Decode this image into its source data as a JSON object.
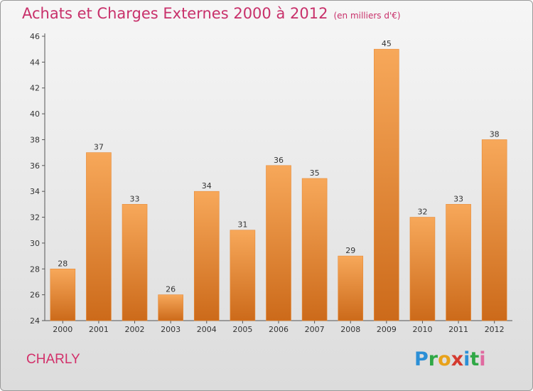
{
  "header": {
    "title": "Achats et Charges Externes 2000 à 2012",
    "unit": "(en milliers d'€)"
  },
  "footer": {
    "commune": "CHARLY",
    "logo_letters": [
      "P",
      "r",
      "o",
      "x",
      "i",
      "t",
      "i"
    ]
  },
  "colors": {
    "bar_top": "#f7a85a",
    "bar_bottom": "#cc6a1a",
    "title": "#c8306a"
  },
  "chart_data": {
    "type": "bar",
    "title": "Achats et Charges Externes 2000 à 2012",
    "subtitle": "(en milliers d'€)",
    "categories": [
      "2000",
      "2001",
      "2002",
      "2003",
      "2004",
      "2005",
      "2006",
      "2007",
      "2008",
      "2009",
      "2010",
      "2011",
      "2012"
    ],
    "values": [
      28,
      37,
      33,
      26,
      34,
      31,
      36,
      35,
      29,
      45,
      32,
      33,
      38
    ],
    "ylim": [
      24,
      46
    ],
    "yticks": [
      24,
      26,
      28,
      30,
      32,
      34,
      36,
      38,
      40,
      42,
      44,
      46
    ],
    "grid": false,
    "legend": "none"
  }
}
